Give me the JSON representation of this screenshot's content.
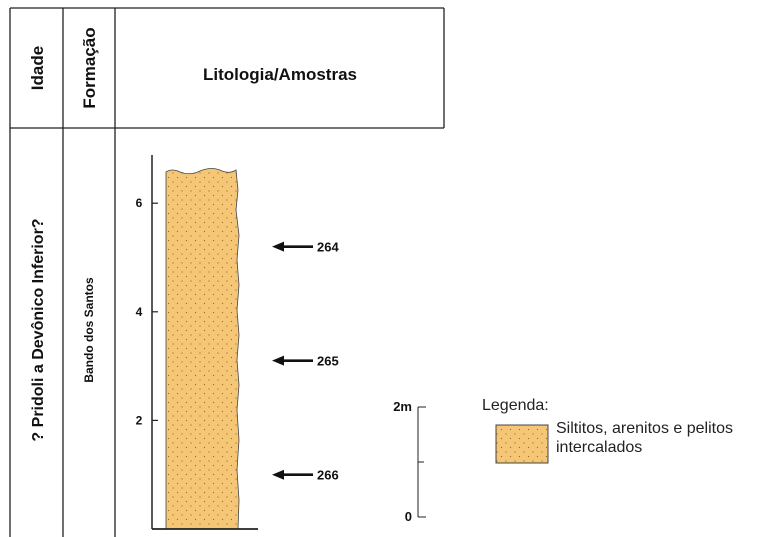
{
  "headers": {
    "age": "Idade",
    "formation": "Formação",
    "lithology": "Litologia/Amostras"
  },
  "age_value": "? Pridoli a Devônico Inferior?",
  "formation_value": "Bando dos Santos",
  "depth_axis": {
    "ticks": [
      {
        "value": 2,
        "label": "2"
      },
      {
        "value": 4,
        "label": "4"
      },
      {
        "value": 6,
        "label": "6"
      }
    ],
    "max": 6.65
  },
  "samples": [
    {
      "label": "264",
      "depth": 5.2
    },
    {
      "label": "265",
      "depth": 3.1
    },
    {
      "label": "266",
      "depth": 1.0
    }
  ],
  "scale_bar": {
    "top_label": "2m",
    "bottom_label": "0"
  },
  "legend": {
    "title": "Legenda:",
    "items": [
      {
        "label": "Siltitos, arenitos e pelitos intercalados",
        "color": "#f5c675"
      }
    ]
  }
}
